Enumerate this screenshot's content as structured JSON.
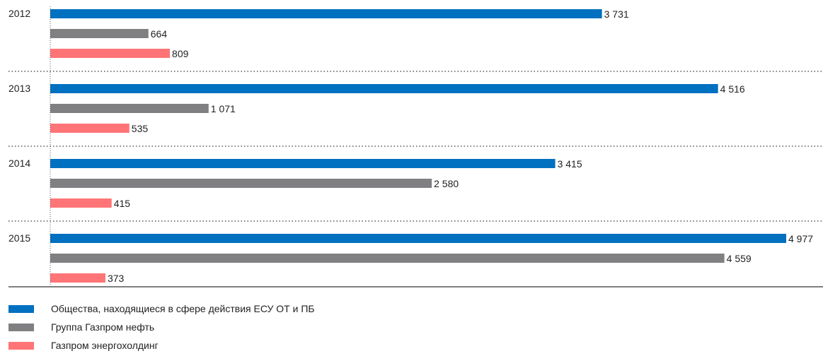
{
  "chart_data": {
    "type": "bar",
    "orientation": "horizontal",
    "categories": [
      "2012",
      "2013",
      "2014",
      "2015"
    ],
    "series": [
      {
        "name": "Общества, находящиеся в сфере действия ЕСУ ОТ и ПБ",
        "color": "#0070c0",
        "values": [
          3731,
          4516,
          3415,
          4977
        ],
        "labels": [
          "3 731",
          "4 516",
          "3 415",
          "4 977"
        ]
      },
      {
        "name": "Группа Газпром нефть",
        "color": "#808083",
        "values": [
          664,
          1071,
          2580,
          4559
        ],
        "labels": [
          "664",
          "1 071",
          "2 580",
          "4 559"
        ]
      },
      {
        "name": "Газпром энергохолдинг",
        "color": "#ff7476",
        "values": [
          809,
          535,
          415,
          373
        ],
        "labels": [
          "809",
          "535",
          "415",
          "373"
        ]
      }
    ],
    "xlim": [
      0,
      5000
    ],
    "grid": false,
    "legend_position": "bottom-left"
  }
}
